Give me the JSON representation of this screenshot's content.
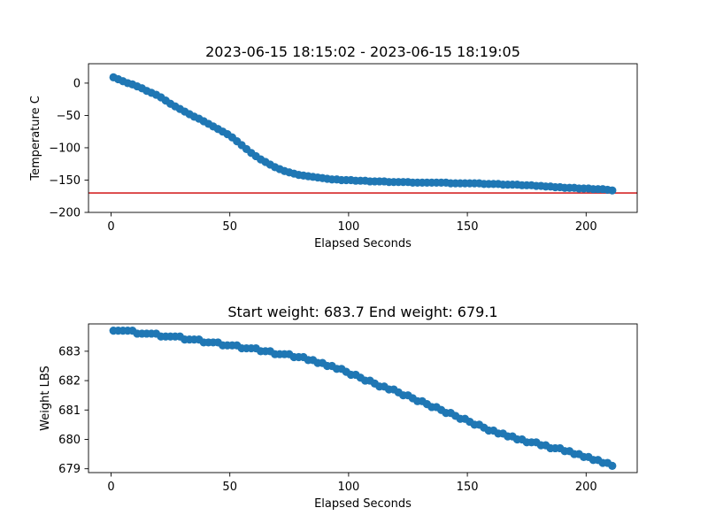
{
  "chart_data": [
    {
      "type": "scatter",
      "title": "2023-06-15 18:15:02 - 2023-06-15 18:19:05",
      "xlabel": "Elapsed Seconds",
      "ylabel": "Temperature C",
      "xlim": [
        -9.5,
        221.5
      ],
      "ylim": [
        -200,
        30
      ],
      "x_ticks": [
        0,
        50,
        100,
        150,
        200
      ],
      "x_tick_labels": [
        "0",
        "50",
        "100",
        "150",
        "200"
      ],
      "y_ticks": [
        0,
        -50,
        -100,
        -150,
        -200
      ],
      "y_tick_labels": [
        "0",
        "−50",
        "−100",
        "−150",
        "−200"
      ],
      "marker_color": "#1f77b4",
      "reference_line": {
        "y": -170,
        "color": "#d62728"
      },
      "points": [
        [
          1,
          9
        ],
        [
          3,
          6
        ],
        [
          5,
          3
        ],
        [
          7,
          0
        ],
        [
          9,
          -2
        ],
        [
          11,
          -5
        ],
        [
          13,
          -8
        ],
        [
          15,
          -12
        ],
        [
          17,
          -15
        ],
        [
          19,
          -18
        ],
        [
          21,
          -22
        ],
        [
          23,
          -27
        ],
        [
          25,
          -32
        ],
        [
          27,
          -36
        ],
        [
          29,
          -40
        ],
        [
          31,
          -44
        ],
        [
          33,
          -48
        ],
        [
          35,
          -52
        ],
        [
          37,
          -55
        ],
        [
          39,
          -59
        ],
        [
          41,
          -63
        ],
        [
          43,
          -67
        ],
        [
          45,
          -71
        ],
        [
          47,
          -75
        ],
        [
          49,
          -79
        ],
        [
          51,
          -84
        ],
        [
          53,
          -90
        ],
        [
          55,
          -96
        ],
        [
          57,
          -102
        ],
        [
          59,
          -108
        ],
        [
          61,
          -113
        ],
        [
          63,
          -118
        ],
        [
          65,
          -122
        ],
        [
          67,
          -126
        ],
        [
          69,
          -130
        ],
        [
          71,
          -133
        ],
        [
          73,
          -136
        ],
        [
          75,
          -138
        ],
        [
          77,
          -140
        ],
        [
          79,
          -142
        ],
        [
          81,
          -143
        ],
        [
          83,
          -144
        ],
        [
          85,
          -145
        ],
        [
          87,
          -146
        ],
        [
          89,
          -147
        ],
        [
          91,
          -148
        ],
        [
          93,
          -149
        ],
        [
          95,
          -149
        ],
        [
          97,
          -150
        ],
        [
          99,
          -150
        ],
        [
          101,
          -150
        ],
        [
          103,
          -151
        ],
        [
          105,
          -151
        ],
        [
          107,
          -151
        ],
        [
          109,
          -152
        ],
        [
          111,
          -152
        ],
        [
          113,
          -152
        ],
        [
          115,
          -152
        ],
        [
          117,
          -153
        ],
        [
          119,
          -153
        ],
        [
          121,
          -153
        ],
        [
          123,
          -153
        ],
        [
          125,
          -153
        ],
        [
          127,
          -154
        ],
        [
          129,
          -154
        ],
        [
          131,
          -154
        ],
        [
          133,
          -154
        ],
        [
          135,
          -154
        ],
        [
          137,
          -154
        ],
        [
          139,
          -154
        ],
        [
          141,
          -154
        ],
        [
          143,
          -155
        ],
        [
          145,
          -155
        ],
        [
          147,
          -155
        ],
        [
          149,
          -155
        ],
        [
          151,
          -155
        ],
        [
          153,
          -155
        ],
        [
          155,
          -155
        ],
        [
          157,
          -156
        ],
        [
          159,
          -156
        ],
        [
          161,
          -156
        ],
        [
          163,
          -156
        ],
        [
          165,
          -157
        ],
        [
          167,
          -157
        ],
        [
          169,
          -157
        ],
        [
          171,
          -157
        ],
        [
          173,
          -158
        ],
        [
          175,
          -158
        ],
        [
          177,
          -158
        ],
        [
          179,
          -159
        ],
        [
          181,
          -159
        ],
        [
          183,
          -160
        ],
        [
          185,
          -160
        ],
        [
          187,
          -161
        ],
        [
          189,
          -161
        ],
        [
          191,
          -162
        ],
        [
          193,
          -162
        ],
        [
          195,
          -162
        ],
        [
          197,
          -163
        ],
        [
          199,
          -163
        ],
        [
          201,
          -163
        ],
        [
          203,
          -164
        ],
        [
          205,
          -164
        ],
        [
          207,
          -164
        ],
        [
          209,
          -165
        ],
        [
          211,
          -166
        ]
      ]
    },
    {
      "type": "scatter",
      "title": "Start weight: 683.7 End weight: 679.1",
      "xlabel": "Elapsed Seconds",
      "ylabel": "Weight LBS",
      "xlim": [
        -9.5,
        221.5
      ],
      "ylim": [
        678.87,
        683.93
      ],
      "x_ticks": [
        0,
        50,
        100,
        150,
        200
      ],
      "x_tick_labels": [
        "0",
        "50",
        "100",
        "150",
        "200"
      ],
      "y_ticks": [
        683,
        682,
        681,
        680,
        679
      ],
      "y_tick_labels": [
        "683",
        "682",
        "681",
        "680",
        "679"
      ],
      "marker_color": "#1f77b4",
      "points": [
        [
          1,
          683.7
        ],
        [
          3,
          683.7
        ],
        [
          5,
          683.7
        ],
        [
          7,
          683.7
        ],
        [
          9,
          683.7
        ],
        [
          11,
          683.6
        ],
        [
          13,
          683.6
        ],
        [
          15,
          683.6
        ],
        [
          17,
          683.6
        ],
        [
          19,
          683.6
        ],
        [
          21,
          683.5
        ],
        [
          23,
          683.5
        ],
        [
          25,
          683.5
        ],
        [
          27,
          683.5
        ],
        [
          29,
          683.5
        ],
        [
          31,
          683.4
        ],
        [
          33,
          683.4
        ],
        [
          35,
          683.4
        ],
        [
          37,
          683.4
        ],
        [
          39,
          683.3
        ],
        [
          41,
          683.3
        ],
        [
          43,
          683.3
        ],
        [
          45,
          683.3
        ],
        [
          47,
          683.2
        ],
        [
          49,
          683.2
        ],
        [
          51,
          683.2
        ],
        [
          53,
          683.2
        ],
        [
          55,
          683.1
        ],
        [
          57,
          683.1
        ],
        [
          59,
          683.1
        ],
        [
          61,
          683.1
        ],
        [
          63,
          683.0
        ],
        [
          65,
          683.0
        ],
        [
          67,
          683.0
        ],
        [
          69,
          682.9
        ],
        [
          71,
          682.9
        ],
        [
          73,
          682.9
        ],
        [
          75,
          682.9
        ],
        [
          77,
          682.8
        ],
        [
          79,
          682.8
        ],
        [
          81,
          682.8
        ],
        [
          83,
          682.7
        ],
        [
          85,
          682.7
        ],
        [
          87,
          682.6
        ],
        [
          89,
          682.6
        ],
        [
          91,
          682.5
        ],
        [
          93,
          682.5
        ],
        [
          95,
          682.4
        ],
        [
          97,
          682.4
        ],
        [
          99,
          682.3
        ],
        [
          101,
          682.2
        ],
        [
          103,
          682.2
        ],
        [
          105,
          682.1
        ],
        [
          107,
          682.0
        ],
        [
          109,
          682.0
        ],
        [
          111,
          681.9
        ],
        [
          113,
          681.8
        ],
        [
          115,
          681.8
        ],
        [
          117,
          681.7
        ],
        [
          119,
          681.7
        ],
        [
          121,
          681.6
        ],
        [
          123,
          681.5
        ],
        [
          125,
          681.5
        ],
        [
          127,
          681.4
        ],
        [
          129,
          681.3
        ],
        [
          131,
          681.3
        ],
        [
          133,
          681.2
        ],
        [
          135,
          681.1
        ],
        [
          137,
          681.1
        ],
        [
          139,
          681.0
        ],
        [
          141,
          680.9
        ],
        [
          143,
          680.9
        ],
        [
          145,
          680.8
        ],
        [
          147,
          680.7
        ],
        [
          149,
          680.7
        ],
        [
          151,
          680.6
        ],
        [
          153,
          680.5
        ],
        [
          155,
          680.5
        ],
        [
          157,
          680.4
        ],
        [
          159,
          680.3
        ],
        [
          161,
          680.3
        ],
        [
          163,
          680.2
        ],
        [
          165,
          680.2
        ],
        [
          167,
          680.1
        ],
        [
          169,
          680.1
        ],
        [
          171,
          680.0
        ],
        [
          173,
          680.0
        ],
        [
          175,
          679.9
        ],
        [
          177,
          679.9
        ],
        [
          179,
          679.9
        ],
        [
          181,
          679.8
        ],
        [
          183,
          679.8
        ],
        [
          185,
          679.7
        ],
        [
          187,
          679.7
        ],
        [
          189,
          679.7
        ],
        [
          191,
          679.6
        ],
        [
          193,
          679.6
        ],
        [
          195,
          679.5
        ],
        [
          197,
          679.5
        ],
        [
          199,
          679.4
        ],
        [
          201,
          679.4
        ],
        [
          203,
          679.3
        ],
        [
          205,
          679.3
        ],
        [
          207,
          679.2
        ],
        [
          209,
          679.2
        ],
        [
          211,
          679.1
        ]
      ]
    }
  ]
}
